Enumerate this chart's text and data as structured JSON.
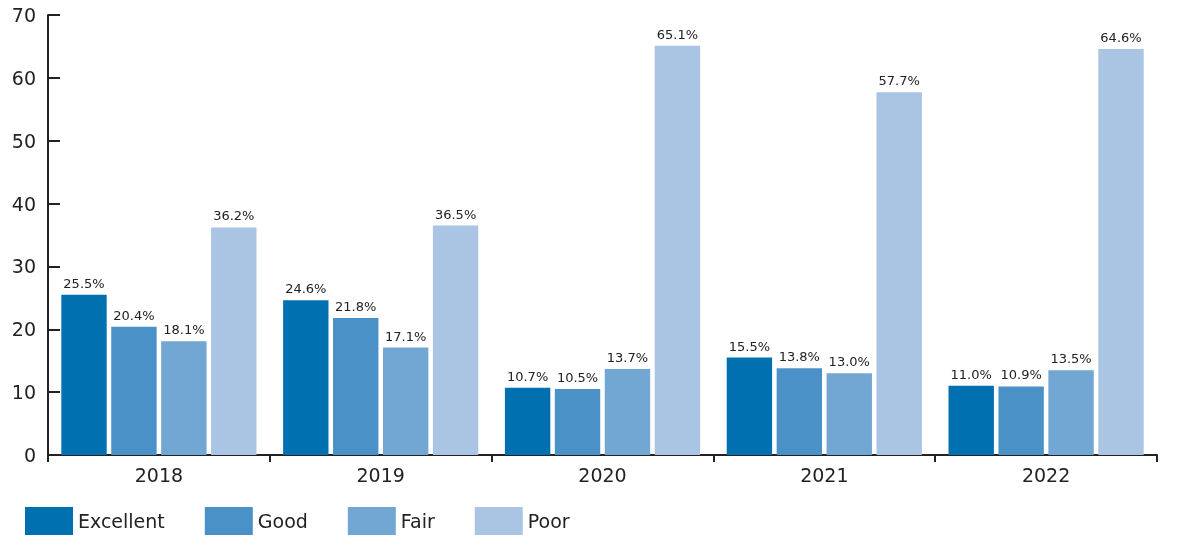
{
  "chart_data": {
    "type": "bar",
    "categories": [
      "2018",
      "2019",
      "2020",
      "2021",
      "2022"
    ],
    "series": [
      {
        "name": "Excellent",
        "color": "#0070b0",
        "values": [
          25.5,
          24.6,
          10.7,
          15.5,
          11.0
        ],
        "value_labels": [
          "25.5%",
          "24.6%",
          "10.7%",
          "15.5%",
          "11.0%"
        ]
      },
      {
        "name": "Good",
        "color": "#4a91c8",
        "values": [
          20.4,
          21.8,
          10.5,
          13.8,
          10.9
        ],
        "value_labels": [
          "20.4%",
          "21.8%",
          "10.5%",
          "13.8%",
          "10.9%"
        ]
      },
      {
        "name": "Fair",
        "color": "#72a6d3",
        "values": [
          18.1,
          17.1,
          13.7,
          13.0,
          13.5
        ],
        "value_labels": [
          "18.1%",
          "17.1%",
          "13.7%",
          "13.0%",
          "13.5%"
        ]
      },
      {
        "name": "Poor",
        "color": "#aac4e4",
        "values": [
          36.2,
          36.5,
          65.1,
          57.7,
          64.6
        ],
        "value_labels": [
          "36.2%",
          "36.5%",
          "65.1%",
          "57.7%",
          "64.6%"
        ]
      }
    ],
    "ylim": [
      0,
      70
    ],
    "yticks": [
      0,
      10,
      20,
      30,
      40,
      50,
      60,
      70
    ],
    "grid": false,
    "legend": "bottom left"
  }
}
